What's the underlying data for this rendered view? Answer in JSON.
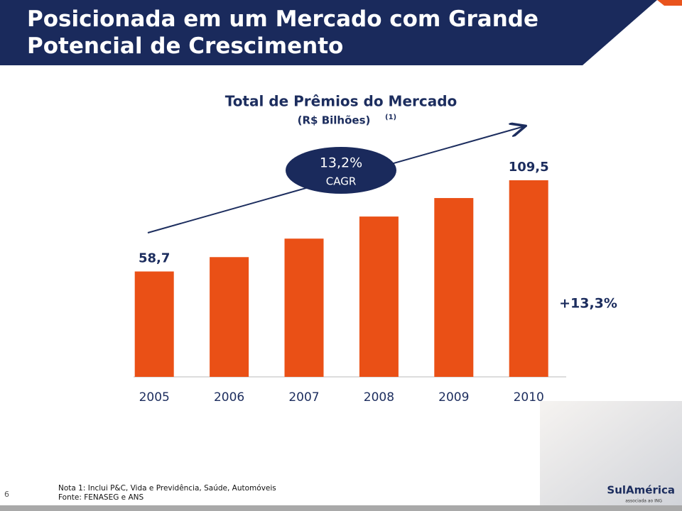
{
  "slide": {
    "title": "Posicionada em um Mercado com Grande Potencial de Crescimento",
    "page_number": "6",
    "notes": [
      "Nota 1: Inclui P&C, Vida e Previdência, Saúde, Automóveis",
      "Fonte: FENASEG e ANS"
    ],
    "logo": "SulAmérica",
    "logo_tagline": "associada ao ING"
  },
  "chart_data": {
    "type": "bar",
    "title": "Total de Prêmios do Mercado",
    "subtitle": "(R$ Bilhões)",
    "footnote_mark": "(1)",
    "categories": [
      "2005",
      "2006",
      "2007",
      "2008",
      "2009",
      "2010"
    ],
    "values": [
      58.7,
      66.7,
      77.0,
      89.3,
      99.6,
      109.5
    ],
    "value_labels": [
      "58,7",
      null,
      null,
      null,
      null,
      "109,5"
    ],
    "color": "#ea5016",
    "cagr": {
      "value": "13,2%",
      "label": "CAGR"
    },
    "growth_label": "+13,3%"
  }
}
